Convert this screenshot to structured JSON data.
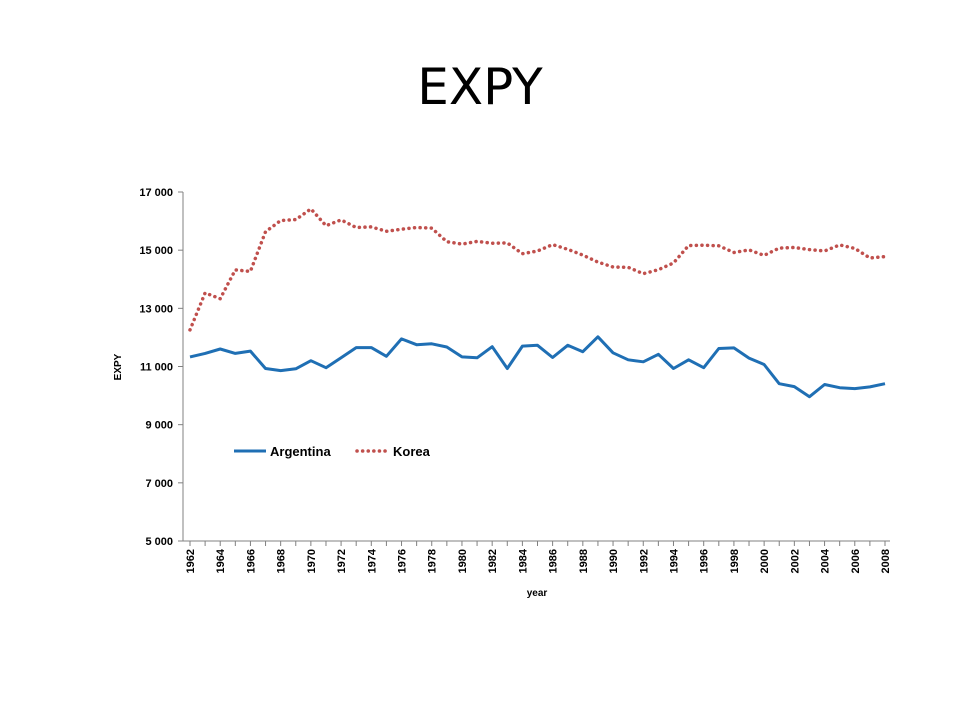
{
  "chart_data": {
    "type": "line",
    "title": "EXPY",
    "xlabel": "year",
    "ylabel": "EXPY",
    "ylim": [
      5000,
      17000
    ],
    "yticks": [
      5000,
      7000,
      9000,
      11000,
      13000,
      15000,
      17000
    ],
    "ytick_labels": [
      "5 000",
      "7 000",
      "9 000",
      "11 000",
      "13 000",
      "15 000",
      "17 000"
    ],
    "xtick_labels": [
      "1962",
      "1964",
      "1966",
      "1968",
      "1970",
      "1972",
      "1974",
      "1976",
      "1978",
      "1980",
      "1982",
      "1984",
      "1986",
      "1988",
      "1990",
      "1992",
      "1994",
      "1996",
      "1998",
      "2000",
      "2002",
      "2004",
      "2006",
      "2008"
    ],
    "grid": false,
    "legend_position": "inside-left",
    "x": [
      1962,
      1963,
      1964,
      1965,
      1966,
      1967,
      1968,
      1969,
      1970,
      1971,
      1972,
      1973,
      1974,
      1975,
      1976,
      1977,
      1978,
      1979,
      1980,
      1981,
      1982,
      1983,
      1984,
      1985,
      1986,
      1987,
      1988,
      1989,
      1990,
      1991,
      1992,
      1993,
      1994,
      1995,
      1996,
      1997,
      1998,
      1999,
      2000,
      2001,
      2002,
      2003,
      2004,
      2005,
      2006,
      2007,
      2008
    ],
    "series": [
      {
        "name": "Argentina",
        "color": "#1f6fb4",
        "style": "solid",
        "values": [
          11330,
          11450,
          11600,
          11450,
          11530,
          10930,
          10860,
          10920,
          11200,
          10960,
          11300,
          11650,
          11650,
          11350,
          11950,
          11750,
          11780,
          11670,
          11330,
          11300,
          11680,
          10930,
          11700,
          11730,
          11310,
          11730,
          11510,
          12020,
          11470,
          11230,
          11160,
          11420,
          10930,
          11230,
          10960,
          11620,
          11640,
          11290,
          11070,
          10410,
          10310,
          9960,
          10380,
          10270,
          10240,
          10300,
          10410
        ]
      },
      {
        "name": "Korea",
        "color": "#c0504d",
        "style": "dotted",
        "values": [
          12260,
          13530,
          13330,
          14320,
          14270,
          15630,
          16020,
          16050,
          16420,
          15840,
          16040,
          15780,
          15800,
          15650,
          15720,
          15780,
          15760,
          15290,
          15210,
          15300,
          15240,
          15250,
          14880,
          14970,
          15190,
          15030,
          14830,
          14590,
          14420,
          14410,
          14190,
          14330,
          14560,
          15160,
          15170,
          15150,
          14920,
          15010,
          14820,
          15070,
          15090,
          15020,
          14970,
          15180,
          15060,
          14730,
          14780
        ]
      }
    ]
  }
}
